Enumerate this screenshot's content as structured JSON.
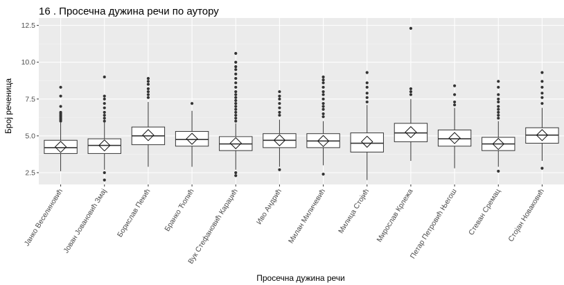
{
  "chart_data": {
    "type": "boxplot",
    "title": "16 .  Просечна дужина речи по аутору",
    "xlabel": "Просечна дужина речи",
    "ylabel": "Број реченица",
    "ylim": [
      1.7,
      13.0
    ],
    "yticks": [
      2.5,
      5.0,
      7.5,
      10.0,
      12.5
    ],
    "ytick_labels": [
      "2.5",
      "5.0",
      "7.5",
      "10.0",
      "12.5"
    ],
    "grid": true,
    "mean_marker": "diamond",
    "colors": {
      "panel": "#ebebeb",
      "grid_major": "#ffffff",
      "grid_minor": "#f5f5f5",
      "box_fill": "#ffffff",
      "box_line": "#333333",
      "outlier": "#333333"
    },
    "categories": [
      "Јанко Веселиновић",
      "Јован Јовановић Змај",
      "Борислав Пекић",
      "Бранко Ћопић",
      "Вук Стефановић Караџић",
      "Иво Андрић",
      "Милан Миличевић",
      "Милица Стојић",
      "Мирослав Крлежа",
      "Петар Петровић Његош",
      "Стеван Сремац",
      "Стојан Новаковић"
    ],
    "boxes": [
      {
        "min": 2.6,
        "q1": 3.8,
        "median": 4.2,
        "q3": 4.7,
        "max": 5.9,
        "mean": 4.25,
        "outliers": [
          6.0,
          6.1,
          6.2,
          6.3,
          6.4,
          6.5,
          6.6,
          7.0,
          7.7,
          8.3
        ]
      },
      {
        "min": 2.7,
        "q1": 3.8,
        "median": 4.35,
        "q3": 4.8,
        "max": 5.9,
        "mean": 4.35,
        "outliers": [
          2.0,
          2.5,
          6.0,
          6.2,
          6.4,
          6.6,
          6.9,
          7.2,
          7.5,
          7.7,
          9.0
        ]
      },
      {
        "min": 2.9,
        "q1": 4.4,
        "median": 5.0,
        "q3": 5.6,
        "max": 7.3,
        "mean": 5.05,
        "outliers": [
          7.6,
          7.8,
          8.0,
          8.2,
          8.5,
          8.7,
          8.9
        ]
      },
      {
        "min": 2.9,
        "q1": 4.3,
        "median": 4.75,
        "q3": 5.3,
        "max": 6.7,
        "mean": 4.8,
        "outliers": [
          7.2
        ]
      },
      {
        "min": 2.7,
        "q1": 4.0,
        "median": 4.45,
        "q3": 4.95,
        "max": 5.85,
        "mean": 4.5,
        "outliers": [
          2.3,
          2.5,
          6.0,
          6.2,
          6.4,
          6.6,
          6.8,
          7.0,
          7.2,
          7.4,
          7.6,
          7.8,
          8.0,
          8.3,
          8.6,
          8.9,
          9.2,
          9.5,
          9.7,
          10.0,
          10.6
        ]
      },
      {
        "min": 2.9,
        "q1": 4.2,
        "median": 4.7,
        "q3": 5.15,
        "max": 6.1,
        "mean": 4.7,
        "outliers": [
          2.7,
          6.4,
          6.6,
          6.9,
          7.2,
          7.5,
          7.7,
          8.0
        ]
      },
      {
        "min": 3.0,
        "q1": 4.2,
        "median": 4.65,
        "q3": 5.15,
        "max": 6.0,
        "mean": 4.65,
        "outliers": [
          2.4,
          6.3,
          6.5,
          6.8,
          7.0,
          7.2,
          7.5,
          7.8,
          8.0,
          8.3,
          8.6,
          8.8,
          9.0
        ]
      },
      {
        "min": 2.0,
        "q1": 3.9,
        "median": 4.5,
        "q3": 5.2,
        "max": 7.1,
        "mean": 4.6,
        "outliers": [
          7.3,
          7.6,
          7.9,
          8.3,
          8.6,
          9.3
        ]
      },
      {
        "min": 3.3,
        "q1": 4.6,
        "median": 5.2,
        "q3": 5.85,
        "max": 7.5,
        "mean": 5.25,
        "outliers": [
          7.8,
          8.0,
          8.2,
          12.3
        ]
      },
      {
        "min": 2.8,
        "q1": 4.3,
        "median": 4.8,
        "q3": 5.4,
        "max": 6.9,
        "mean": 4.85,
        "outliers": [
          7.1,
          7.3,
          7.8,
          8.4
        ]
      },
      {
        "min": 2.9,
        "q1": 4.0,
        "median": 4.45,
        "q3": 4.9,
        "max": 6.0,
        "mean": 4.45,
        "outliers": [
          2.6,
          6.2,
          6.4,
          6.6,
          6.8,
          7.0,
          7.3,
          7.5,
          7.8,
          8.3,
          8.7
        ]
      },
      {
        "min": 3.3,
        "q1": 4.5,
        "median": 5.05,
        "q3": 5.55,
        "max": 6.9,
        "mean": 5.05,
        "outliers": [
          2.8,
          7.2,
          7.6,
          7.9,
          8.3,
          8.7,
          9.3
        ]
      }
    ]
  }
}
